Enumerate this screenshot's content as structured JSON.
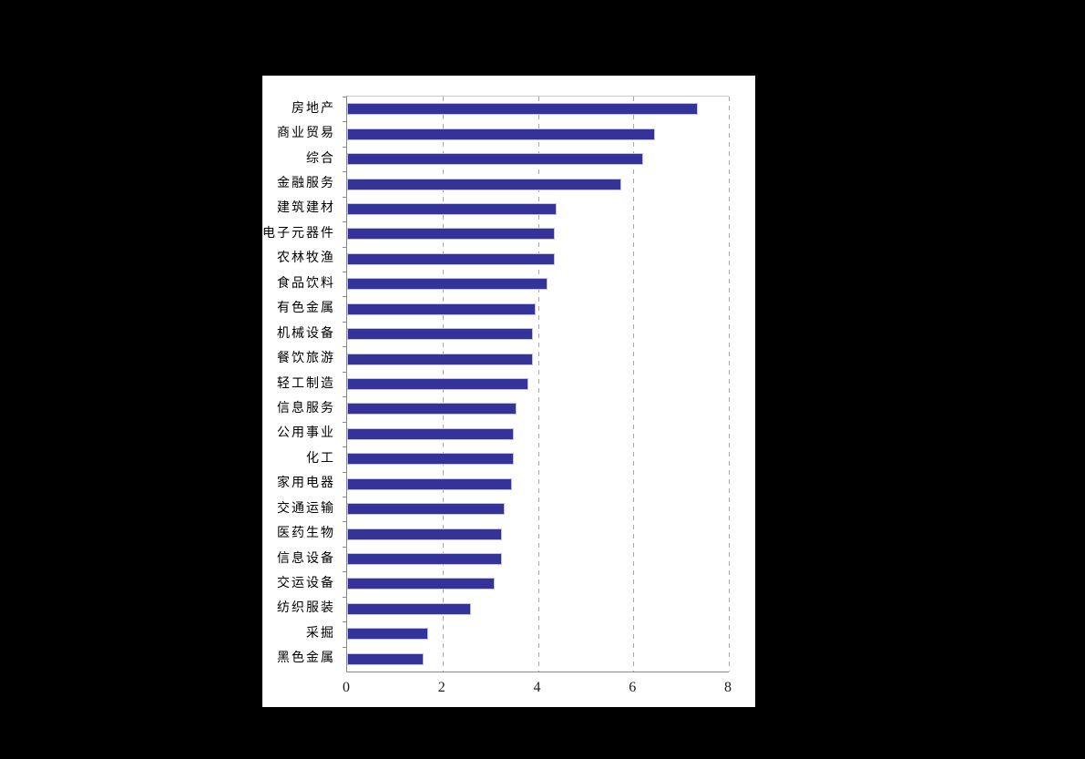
{
  "chart_data": {
    "type": "bar",
    "orientation": "horizontal",
    "title": "",
    "xlabel": "",
    "ylabel": "",
    "categories": [
      "房地产",
      "商业贸易",
      "综合",
      "金融服务",
      "建筑建材",
      "电子元器件",
      "农林牧渔",
      "食品饮料",
      "有色金属",
      "机械设备",
      "餐饮旅游",
      "轻工制造",
      "信息服务",
      "公用事业",
      "化工",
      "家用电器",
      "交通运输",
      "医药生物",
      "信息设备",
      "交运设备",
      "纺织服装",
      "采掘",
      "黑色金属"
    ],
    "values": [
      7.35,
      6.45,
      6.2,
      5.75,
      4.4,
      4.35,
      4.35,
      4.2,
      3.95,
      3.9,
      3.9,
      3.8,
      3.55,
      3.5,
      3.5,
      3.45,
      3.3,
      3.25,
      3.25,
      3.1,
      2.6,
      1.7,
      1.6
    ],
    "xlim": [
      0,
      8
    ],
    "xticks": [
      "0",
      "2",
      "4",
      "6",
      "8"
    ],
    "grid": "vertical-dashed",
    "legend": "none",
    "colors": {
      "bar_fill": "#333399",
      "bar_border": "#c3c3de",
      "gridline": "#a6a6a6",
      "axis": "#8a8a8a",
      "page_background": "#000000",
      "panel_background": "#ffffff",
      "tick_text": "#1a1a1a"
    }
  }
}
